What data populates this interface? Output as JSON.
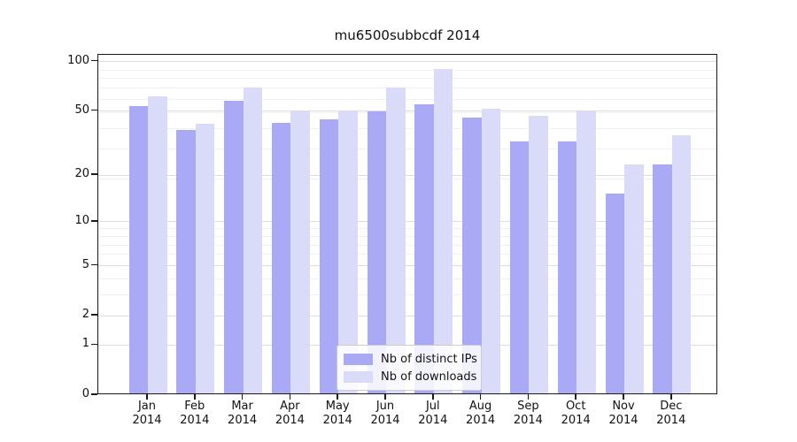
{
  "chart": {
    "title": "mu6500subbcdf 2014",
    "year_label": "2014",
    "legend": [
      {
        "label": "Nb of distinct IPs",
        "color": "#a9a9f6"
      },
      {
        "label": "Nb of downloads",
        "color": "#dadaf9"
      }
    ]
  },
  "chart_data": {
    "type": "bar",
    "title": "mu6500subbcdf 2014",
    "categories": [
      "Jan 2014",
      "Feb 2014",
      "Mar 2014",
      "Apr 2014",
      "May 2014",
      "Jun 2014",
      "Jul 2014",
      "Aug 2014",
      "Sep 2014",
      "Oct 2014",
      "Nov 2014",
      "Dec 2014"
    ],
    "month_labels": [
      "Jan",
      "Feb",
      "Mar",
      "Apr",
      "May",
      "Jun",
      "Jul",
      "Aug",
      "Sep",
      "Oct",
      "Nov",
      "Dec"
    ],
    "series": [
      {
        "name": "Nb of distinct IPs",
        "color": "#a9a9f6",
        "values": [
          53,
          38,
          57,
          42,
          44,
          49,
          54,
          45,
          32,
          32,
          15,
          23
        ]
      },
      {
        "name": "Nb of downloads",
        "color": "#dadaf9",
        "values": [
          61,
          41,
          69,
          49,
          49,
          69,
          89,
          51,
          46,
          49,
          23,
          35
        ]
      }
    ],
    "xlabel": "",
    "ylabel": "",
    "yscale": "log1p",
    "ylim": [
      0,
      110
    ],
    "y_major_ticks": [
      100,
      50,
      20,
      10,
      5,
      2,
      1,
      0
    ],
    "y_minor_gridlines": [
      3,
      4,
      6,
      7,
      8,
      9,
      19,
      29,
      39,
      49,
      59,
      69,
      79,
      89
    ],
    "grid": true,
    "legend_position": "lower center"
  }
}
